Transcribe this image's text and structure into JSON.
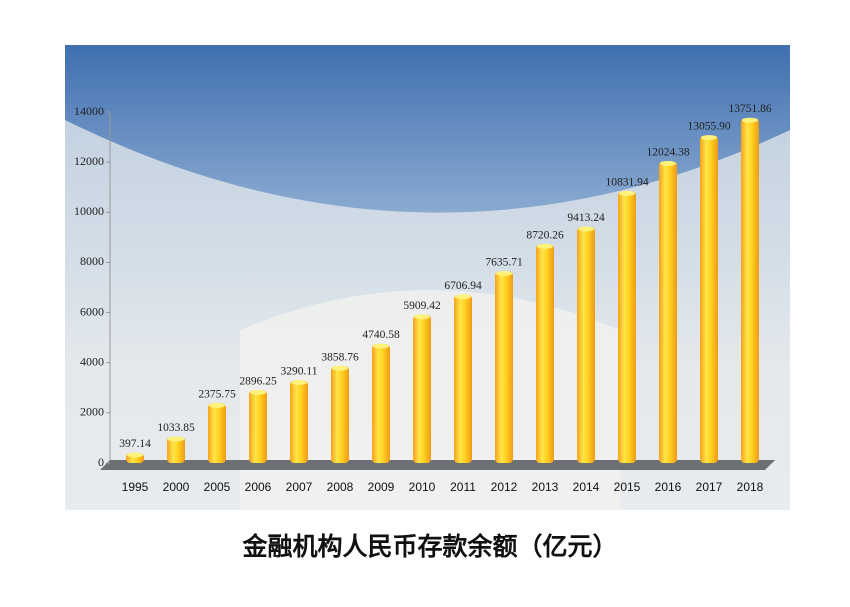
{
  "chart_data": {
    "type": "bar",
    "title": "金融机构人民币存款余额（亿元）",
    "categories": [
      "1995",
      "2000",
      "2005",
      "2006",
      "2007",
      "2008",
      "2009",
      "2010",
      "2011",
      "2012",
      "2013",
      "2014",
      "2015",
      "2016",
      "2017",
      "2018"
    ],
    "values": [
      397.14,
      1033.85,
      2375.75,
      2896.25,
      3290.11,
      3858.76,
      4740.58,
      5909.42,
      6706.94,
      7635.71,
      8720.26,
      9413.24,
      10831.94,
      12024.38,
      13055.9,
      13751.86
    ],
    "value_labels": [
      "397.14",
      "1033.85",
      "2375.75",
      "2896.25",
      "3290.11",
      "3858.76",
      "4740.58",
      "5909.42",
      "6706.94",
      "7635.71",
      "8720.26",
      "9413.24",
      "10831.94",
      "12024.38",
      "13055.90",
      "13751.86"
    ],
    "color": "#ffc21a",
    "ylim": [
      0,
      14000
    ],
    "yticks": [
      0,
      2000,
      4000,
      6000,
      8000,
      10000,
      12000,
      14000
    ]
  }
}
